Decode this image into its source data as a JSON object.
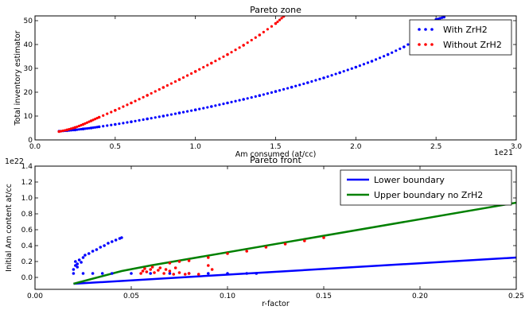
{
  "chart_data": [
    {
      "type": "scatter",
      "title": "Pareto zone",
      "xlabel": "Am consumed (at/cc)",
      "ylabel": "Total inventory estimator",
      "x_offset_label": "1e21",
      "xlim": [
        0,
        3.0
      ],
      "ylim": [
        0,
        52
      ],
      "xticks": [
        "0.0",
        "0.5",
        "1.0",
        "1.5",
        "2.0",
        "2.5",
        "3.0"
      ],
      "yticks": [
        "0",
        "10",
        "20",
        "30",
        "40",
        "50"
      ],
      "legend_position": "top-right",
      "series": [
        {
          "name": "With ZrH2",
          "color": "#0000ff",
          "points": [
            [
              0.15,
              3.6
            ],
            [
              0.2,
              3.9
            ],
            [
              0.25,
              4.2
            ],
            [
              0.3,
              4.6
            ],
            [
              0.35,
              5.0
            ],
            [
              0.4,
              5.5
            ],
            [
              0.5,
              6.5
            ],
            [
              0.6,
              7.6
            ],
            [
              0.7,
              8.8
            ],
            [
              0.8,
              10.0
            ],
            [
              0.9,
              11.3
            ],
            [
              1.0,
              12.6
            ],
            [
              1.1,
              14.0
            ],
            [
              1.2,
              15.5
            ],
            [
              1.3,
              17.0
            ],
            [
              1.4,
              18.6
            ],
            [
              1.5,
              20.3
            ],
            [
              1.6,
              22.1
            ],
            [
              1.7,
              24.0
            ],
            [
              1.8,
              26.0
            ],
            [
              1.9,
              28.2
            ],
            [
              2.0,
              30.5
            ],
            [
              2.1,
              33.0
            ],
            [
              2.2,
              35.8
            ],
            [
              2.3,
              39.0
            ],
            [
              2.4,
              43.0
            ],
            [
              2.45,
              47.0
            ],
            [
              2.5,
              50.5
            ],
            [
              2.55,
              51.5
            ]
          ]
        },
        {
          "name": "Without ZrH2",
          "color": "#ff0000",
          "points": [
            [
              0.15,
              3.5
            ],
            [
              0.2,
              4.2
            ],
            [
              0.25,
              5.2
            ],
            [
              0.3,
              6.5
            ],
            [
              0.35,
              8.0
            ],
            [
              0.4,
              9.5
            ],
            [
              0.5,
              12.4
            ],
            [
              0.6,
              15.5
            ],
            [
              0.7,
              18.7
            ],
            [
              0.8,
              22.0
            ],
            [
              0.9,
              25.3
            ],
            [
              1.0,
              28.7
            ],
            [
              1.1,
              32.2
            ],
            [
              1.2,
              35.8
            ],
            [
              1.3,
              39.7
            ],
            [
              1.4,
              44.0
            ],
            [
              1.5,
              48.8
            ],
            [
              1.55,
              51.8
            ]
          ]
        }
      ]
    },
    {
      "type": "scatter",
      "title": "Pareto front",
      "xlabel": "r-factor",
      "ylabel": "Initial Am content at/cc",
      "y_offset_label": "1e22",
      "xlim": [
        0,
        0.25
      ],
      "ylim": [
        -0.15,
        1.4
      ],
      "xticks": [
        "0.00",
        "0.05",
        "0.10",
        "0.15",
        "0.20",
        "0.25"
      ],
      "yticks": [
        "0.0",
        "0.2",
        "0.4",
        "0.6",
        "0.8",
        "1.0",
        "1.2",
        "1.4"
      ],
      "legend_position": "top-right",
      "series": [
        {
          "name": "Lower boundary",
          "kind": "line",
          "color": "#0000ff",
          "points": [
            [
              0.02,
              -0.08
            ],
            [
              0.25,
              0.25
            ]
          ]
        },
        {
          "name": "Upper boundary no ZrH2",
          "kind": "line",
          "color": "#008000",
          "points": [
            [
              0.02,
              -0.08
            ],
            [
              0.045,
              0.08
            ],
            [
              0.06,
              0.15
            ],
            [
              0.25,
              0.94
            ]
          ]
        },
        {
          "name": "",
          "kind": "points",
          "color": "#0000ff",
          "points": [
            [
              0.02,
              0.05
            ],
            [
              0.02,
              0.1
            ],
            [
              0.021,
              0.15
            ],
            [
              0.021,
              0.2
            ],
            [
              0.022,
              0.13
            ],
            [
              0.022,
              0.17
            ],
            [
              0.023,
              0.22
            ],
            [
              0.024,
              0.19
            ],
            [
              0.025,
              0.25
            ],
            [
              0.026,
              0.28
            ],
            [
              0.028,
              0.3
            ],
            [
              0.03,
              0.33
            ],
            [
              0.032,
              0.35
            ],
            [
              0.034,
              0.38
            ],
            [
              0.036,
              0.4
            ],
            [
              0.038,
              0.43
            ],
            [
              0.04,
              0.45
            ],
            [
              0.042,
              0.47
            ],
            [
              0.044,
              0.49
            ],
            [
              0.045,
              0.5
            ],
            [
              0.03,
              0.05
            ],
            [
              0.035,
              0.05
            ],
            [
              0.04,
              0.05
            ],
            [
              0.05,
              0.05
            ],
            [
              0.06,
              0.05
            ],
            [
              0.07,
              0.05
            ],
            [
              0.08,
              0.05
            ],
            [
              0.09,
              0.05
            ],
            [
              0.1,
              0.05
            ],
            [
              0.11,
              0.05
            ],
            [
              0.115,
              0.05
            ],
            [
              0.025,
              0.05
            ]
          ]
        },
        {
          "name": "",
          "kind": "points",
          "color": "#ff0000",
          "points": [
            [
              0.055,
              0.05
            ],
            [
              0.056,
              0.08
            ],
            [
              0.057,
              0.11
            ],
            [
              0.058,
              0.07
            ],
            [
              0.06,
              0.1
            ],
            [
              0.061,
              0.13
            ],
            [
              0.062,
              0.06
            ],
            [
              0.064,
              0.09
            ],
            [
              0.065,
              0.12
            ],
            [
              0.067,
              0.05
            ],
            [
              0.07,
              0.08
            ],
            [
              0.072,
              0.04
            ],
            [
              0.075,
              0.06
            ],
            [
              0.078,
              0.04
            ],
            [
              0.08,
              0.05
            ],
            [
              0.085,
              0.04
            ],
            [
              0.068,
              0.1
            ],
            [
              0.073,
              0.12
            ],
            [
              0.07,
              0.18
            ],
            [
              0.075,
              0.2
            ],
            [
              0.08,
              0.21
            ],
            [
              0.09,
              0.25
            ],
            [
              0.1,
              0.3
            ],
            [
              0.11,
              0.33
            ],
            [
              0.12,
              0.38
            ],
            [
              0.13,
              0.42
            ],
            [
              0.14,
              0.46
            ],
            [
              0.15,
              0.5
            ],
            [
              0.09,
              0.15
            ],
            [
              0.092,
              0.1
            ]
          ]
        }
      ]
    }
  ]
}
